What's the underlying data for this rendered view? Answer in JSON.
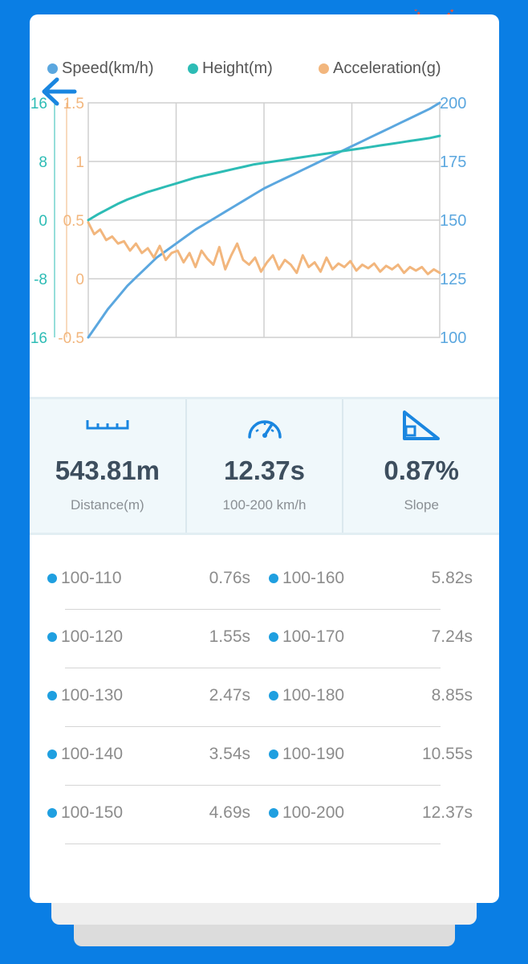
{
  "legend": [
    {
      "label": "Speed(km/h)",
      "color": "#5ba7df"
    },
    {
      "label": "Height(m)",
      "color": "#2dbcb5"
    },
    {
      "label": "Acceleration(g)",
      "color": "#f2b67d"
    }
  ],
  "chart_data": {
    "type": "line",
    "x_points": 60,
    "axes": {
      "height_left": {
        "ticks": [
          "16",
          "8",
          "0",
          "-8",
          "-16"
        ],
        "color": "#2dbcb5",
        "ylim": [
          -16,
          16
        ]
      },
      "acceleration_left": {
        "ticks": [
          "1.5",
          "1",
          "0.5",
          "0",
          "-0.5"
        ],
        "color": "#f2b67d",
        "ylim": [
          -0.5,
          1.5
        ]
      },
      "speed_right": {
        "ticks": [
          "200",
          "175",
          "150",
          "125",
          "100"
        ],
        "color": "#5ba7df",
        "ylim": [
          100,
          200
        ]
      }
    },
    "grid": true,
    "series": [
      {
        "name": "Speed(km/h)",
        "axis": "speed_right",
        "color": "#5ba7df",
        "values": [
          100,
          106,
          112,
          117,
          122,
          126,
          130,
          134,
          137,
          140,
          143,
          146,
          148.5,
          151,
          153.5,
          156,
          158.5,
          161,
          163.5,
          165.5,
          167.5,
          169.5,
          171.5,
          173.5,
          175.5,
          177.5,
          179.5,
          181.5,
          183.5,
          185.5,
          187.5,
          189.5,
          191.5,
          193.5,
          195.5,
          197.5,
          200
        ]
      },
      {
        "name": "Height(m)",
        "axis": "height_left",
        "color": "#2dbcb5",
        "values": [
          0,
          0.8,
          1.5,
          2.2,
          2.8,
          3.3,
          3.8,
          4.2,
          4.6,
          5,
          5.4,
          5.8,
          6.1,
          6.4,
          6.7,
          7,
          7.3,
          7.6,
          7.8,
          8,
          8.2,
          8.4,
          8.6,
          8.8,
          9,
          9.2,
          9.4,
          9.6,
          9.8,
          10,
          10.2,
          10.4,
          10.6,
          10.8,
          11,
          11.2,
          11.5
        ]
      },
      {
        "name": "Acceleration(g)",
        "axis": "acceleration_left",
        "color": "#f2b67d",
        "values": [
          0.48,
          0.38,
          0.42,
          0.33,
          0.36,
          0.3,
          0.32,
          0.24,
          0.3,
          0.22,
          0.26,
          0.18,
          0.28,
          0.16,
          0.22,
          0.24,
          0.14,
          0.22,
          0.1,
          0.24,
          0.17,
          0.12,
          0.27,
          0.08,
          0.2,
          0.3,
          0.16,
          0.12,
          0.18,
          0.06,
          0.14,
          0.2,
          0.08,
          0.16,
          0.12,
          0.05,
          0.2,
          0.1,
          0.14,
          0.06,
          0.18,
          0.08,
          0.13,
          0.1,
          0.15,
          0.07,
          0.12,
          0.09,
          0.13,
          0.06,
          0.11,
          0.08,
          0.12,
          0.05,
          0.1,
          0.07,
          0.1,
          0.04,
          0.08,
          0.05
        ]
      }
    ]
  },
  "stats": [
    {
      "icon": "ruler-icon",
      "value": "543.81m",
      "label": "Distance(m)"
    },
    {
      "icon": "speedometer-icon",
      "value": "12.37s",
      "label": "100-200 km/h"
    },
    {
      "icon": "slope-icon",
      "value": "0.87%",
      "label": "Slope"
    }
  ],
  "times": [
    {
      "left_label": "100-110",
      "left_value": "0.76s",
      "right_label": "100-160",
      "right_value": "5.82s"
    },
    {
      "left_label": "100-120",
      "left_value": "1.55s",
      "right_label": "100-170",
      "right_value": "7.24s"
    },
    {
      "left_label": "100-130",
      "left_value": "2.47s",
      "right_label": "100-180",
      "right_value": "8.85s"
    },
    {
      "left_label": "100-140",
      "left_value": "3.54s",
      "right_label": "100-190",
      "right_value": "10.55s"
    },
    {
      "left_label": "100-150",
      "left_value": "4.69s",
      "right_label": "100-200",
      "right_value": "12.37s"
    }
  ],
  "colors": {
    "background": "#0a7ee4",
    "accent": "#1f9fe0"
  }
}
